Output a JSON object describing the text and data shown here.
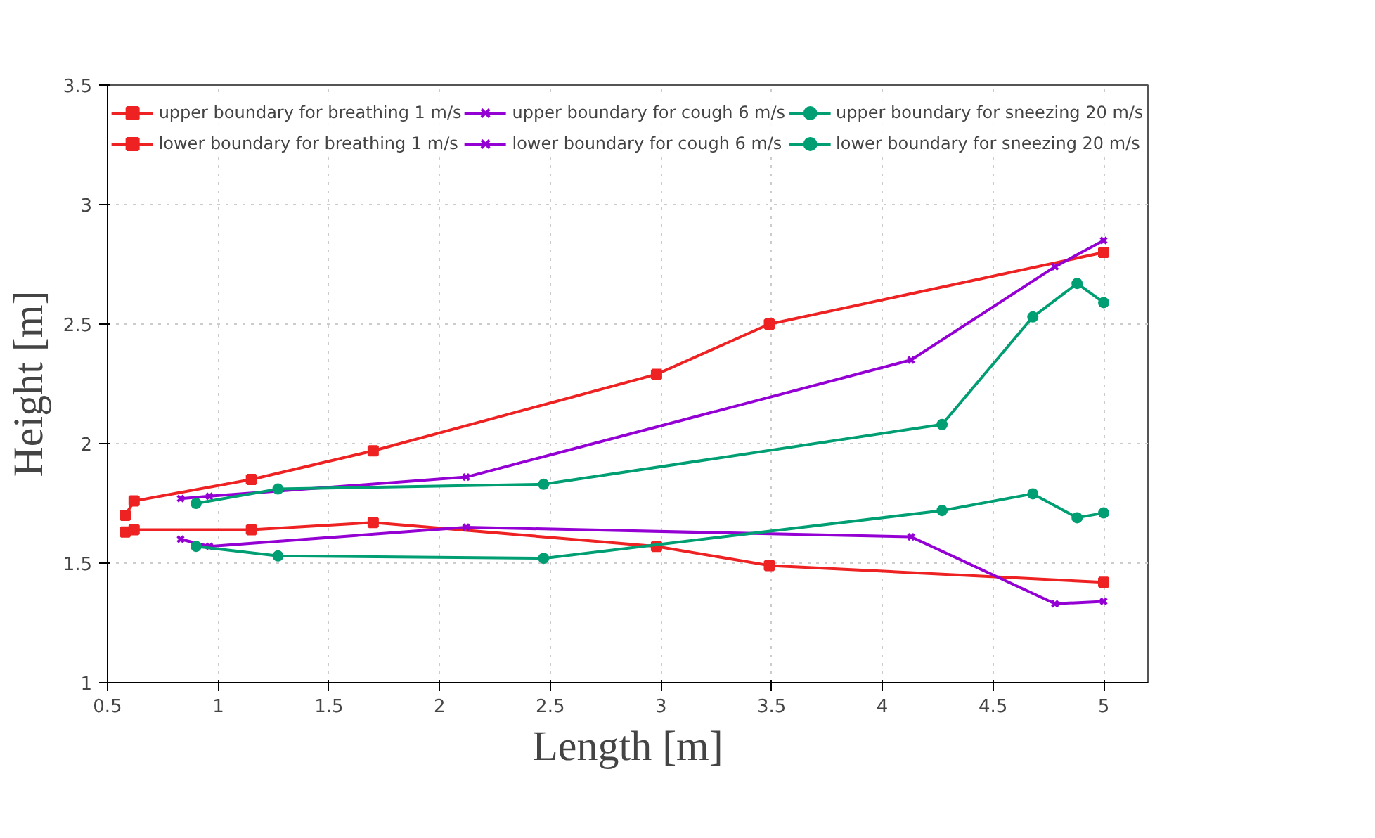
{
  "chart_data": {
    "type": "line",
    "xlabel": "Length [m]",
    "ylabel": "Height [m]",
    "xlim": [
      0.5,
      5.2
    ],
    "xticks": [
      0.5,
      1,
      1.5,
      2,
      2.5,
      3,
      3.5,
      4,
      4.5,
      5
    ],
    "ylim": [
      1,
      3.5
    ],
    "yticks": [
      1,
      1.5,
      2,
      2.5,
      3,
      3.5
    ],
    "grid": true,
    "legend": "top",
    "line_style": "solid",
    "series": [
      {
        "name": "upper boundary for breathing 1 m/s",
        "color": "#ee2222",
        "marker": "square",
        "x": [
          0.58,
          0.62,
          1.15,
          1.7,
          2.98,
          3.49,
          5
        ],
        "values": [
          1.7,
          1.76,
          1.85,
          1.97,
          2.29,
          2.5,
          2.8
        ]
      },
      {
        "name": "lower boundary for breathing 1 m/s",
        "color": "#ee2222",
        "marker": "square",
        "x": [
          0.58,
          0.62,
          1.15,
          1.7,
          2.98,
          3.49,
          5
        ],
        "values": [
          1.63,
          1.64,
          1.64,
          1.67,
          1.57,
          1.49,
          1.42
        ]
      },
      {
        "name": "upper boundary for cough 6 m/s",
        "color": "#9400d3",
        "marker": "cross",
        "x": [
          0.83,
          0.96,
          2.12,
          4.13,
          4.78,
          5
        ],
        "values": [
          1.77,
          1.78,
          1.86,
          2.35,
          2.74,
          2.85
        ]
      },
      {
        "name": "lower boundary for cough 6 m/s",
        "color": "#9400d3",
        "marker": "cross",
        "x": [
          0.83,
          0.96,
          2.12,
          4.13,
          4.78,
          5
        ],
        "values": [
          1.6,
          1.57,
          1.65,
          1.61,
          1.33,
          1.34
        ]
      },
      {
        "name": "upper boundary for sneezing 20 m/s",
        "color": "#009e73",
        "marker": "circle",
        "x": [
          0.9,
          1.27,
          2.47,
          4.27,
          4.68,
          4.88,
          5
        ],
        "values": [
          1.75,
          1.81,
          1.83,
          2.08,
          2.53,
          2.67,
          2.59
        ]
      },
      {
        "name": "lower boundary for sneezing 20 m/s",
        "color": "#009e73",
        "marker": "circle",
        "x": [
          0.9,
          1.27,
          2.47,
          4.27,
          4.68,
          4.88,
          5
        ],
        "values": [
          1.57,
          1.53,
          1.52,
          1.72,
          1.79,
          1.69,
          1.71
        ]
      }
    ]
  }
}
